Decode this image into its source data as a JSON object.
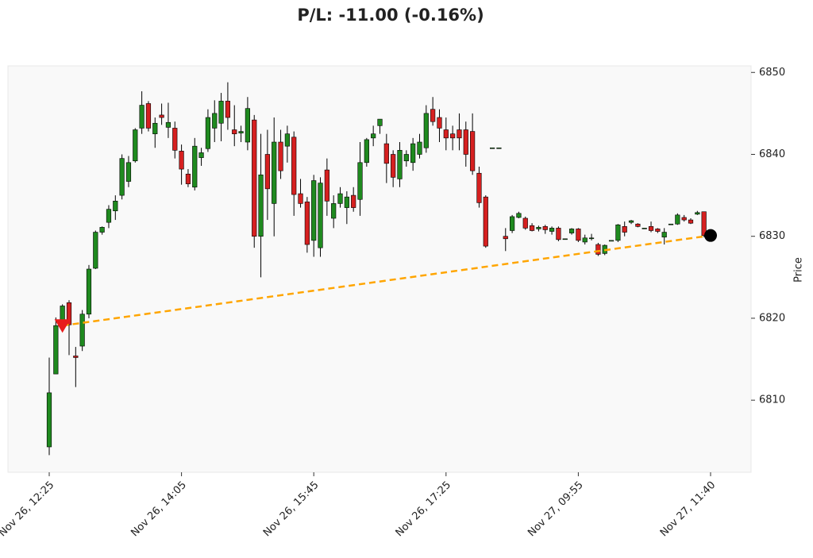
{
  "chart_data": {
    "type": "candlestick",
    "title": "P/L: -11.00 (-0.16%)",
    "y_label": "Price",
    "categories": [
      "Nov 26, 12:25",
      null,
      null,
      null,
      null,
      null,
      null,
      null,
      null,
      null,
      null,
      null,
      null,
      null,
      null,
      null,
      null,
      null,
      null,
      null,
      "Nov 26, 14:05",
      null,
      null,
      null,
      null,
      null,
      null,
      null,
      null,
      null,
      null,
      null,
      null,
      null,
      null,
      null,
      null,
      null,
      null,
      null,
      "Nov 26, 15:45",
      null,
      null,
      null,
      null,
      null,
      null,
      null,
      null,
      null,
      null,
      null,
      null,
      null,
      null,
      null,
      null,
      null,
      null,
      null,
      "Nov 26, 17:25",
      null,
      null,
      null,
      null,
      null,
      null,
      null,
      null,
      null,
      null,
      null,
      null,
      null,
      null,
      null,
      null,
      null,
      null,
      null,
      "Nov 27, 09:55",
      null,
      null,
      null,
      null,
      null,
      null,
      null,
      null,
      null,
      null,
      null,
      null,
      null,
      null,
      null,
      null,
      null,
      null,
      null,
      "Nov 27, 11:40"
    ],
    "open": [
      6804.3,
      6813.2,
      6819.1,
      6821.9,
      6815.4,
      6816.6,
      6820.5,
      6826.1,
      6830.5,
      6831.7,
      6833.1,
      6835.0,
      6836.7,
      6839.2,
      6843.2,
      6846.2,
      6842.5,
      6844.8,
      6843.3,
      6843.2,
      6840.4,
      6837.6,
      6836.0,
      6839.6,
      6840.7,
      6843.2,
      6843.8,
      6846.5,
      6843.0,
      6842.6,
      6841.5,
      6844.2,
      6830.0,
      6840.0,
      6834.0,
      6841.5,
      6841.0,
      6842.1,
      6835.2,
      6834.2,
      6829.5,
      6828.6,
      6838.1,
      6832.2,
      6834.0,
      6833.5,
      6835.0,
      6834.5,
      6839.0,
      6842.0,
      6843.5,
      6841.3,
      6840.0,
      6837.0,
      6839.2,
      6839.0,
      6840.0,
      6840.8,
      6845.5,
      6844.5,
      6843.0,
      6842.5,
      6843.0,
      6843.0,
      6842.8,
      6837.7,
      6834.8,
      6840.8,
      6840.8,
      6830.0,
      6830.7,
      6832.3,
      6832.2,
      6831.3,
      6830.9,
      6831.2,
      6830.6,
      6831.0,
      6829.7,
      6830.4,
      6830.9,
      6829.3,
      6829.8,
      6829.0,
      6827.9,
      6829.5,
      6829.5,
      6831.2,
      6831.7,
      6831.5,
      6831.0,
      6831.2,
      6830.9,
      6829.9,
      6831.5,
      6831.5,
      6832.3,
      6832.0,
      6832.7,
      6833.0,
      null
    ],
    "high": [
      6815.2,
      6820.1,
      6821.7,
      6822.2,
      6816.5,
      6821.0,
      6826.5,
      6830.7,
      6831.2,
      6833.8,
      6835.0,
      6840.0,
      6839.8,
      6843.2,
      6847.7,
      6846.5,
      6844.5,
      6846.2,
      6846.3,
      6844.0,
      6841.2,
      6838.2,
      6842.0,
      6840.8,
      6845.5,
      6846.6,
      6847.5,
      6848.8,
      6846.0,
      6843.5,
      6847.0,
      6844.8,
      6842.5,
      6843.0,
      6844.5,
      6843.0,
      6843.5,
      6842.8,
      6837.0,
      6834.8,
      6837.5,
      6837.2,
      6839.5,
      6835.0,
      6836.0,
      6835.5,
      6836.0,
      6841.5,
      6842.0,
      6843.5,
      6844.2,
      6842.5,
      6840.5,
      6841.5,
      6840.5,
      6842.0,
      6842.5,
      6846.0,
      6847.0,
      6845.5,
      6844.5,
      6843.5,
      6845.0,
      6844.0,
      6845.0,
      6838.5,
      6835.0,
      6840.8,
      6840.8,
      6831.0,
      6832.6,
      6833.0,
      6832.4,
      6831.6,
      6831.3,
      6831.4,
      6831.2,
      6831.2,
      6829.7,
      6831.0,
      6831.0,
      6830.2,
      6830.3,
      6829.2,
      6829.0,
      6829.5,
      6831.5,
      6831.8,
      6832.0,
      6831.6,
      6831.0,
      6831.8,
      6831.0,
      6831.0,
      6831.5,
      6832.8,
      6832.6,
      6832.2,
      6833.1,
      6833.0,
      null
    ],
    "low": [
      6803.3,
      6813.2,
      6818.6,
      6815.5,
      6811.6,
      6816.0,
      6820.0,
      6826.0,
      6830.2,
      6831.0,
      6832.0,
      6834.5,
      6836.0,
      6839.0,
      6842.5,
      6842.8,
      6840.8,
      6843.6,
      6842.0,
      6839.5,
      6836.3,
      6836.0,
      6835.6,
      6838.6,
      6840.3,
      6841.5,
      6841.6,
      6843.0,
      6841.0,
      6841.5,
      6840.5,
      6828.6,
      6825.0,
      6832.0,
      6830.0,
      6837.0,
      6839.0,
      6832.5,
      6833.5,
      6828.0,
      6827.5,
      6827.5,
      6832.5,
      6831.0,
      6833.5,
      6831.5,
      6833.0,
      6832.5,
      6838.5,
      6841.0,
      6842.5,
      6836.5,
      6836.0,
      6836.0,
      6838.5,
      6838.0,
      6839.5,
      6840.2,
      6843.5,
      6841.5,
      6840.5,
      6840.5,
      6840.5,
      6838.5,
      6837.5,
      6833.5,
      6828.6,
      6840.8,
      6840.8,
      6828.2,
      6830.4,
      6832.2,
      6830.8,
      6830.6,
      6830.6,
      6830.3,
      6830.2,
      6829.4,
      6829.7,
      6830.2,
      6829.3,
      6829.0,
      6829.5,
      6827.6,
      6827.7,
      6829.5,
      6829.3,
      6830.0,
      6831.5,
      6831.1,
      6831.0,
      6830.5,
      6830.4,
      6829.0,
      6831.5,
      6831.4,
      6831.8,
      6831.5,
      6832.6,
      6829.9,
      null
    ],
    "close": [
      6810.9,
      6819.1,
      6821.5,
      6819.2,
      6815.2,
      6820.5,
      6826.0,
      6830.5,
      6831.1,
      6833.3,
      6834.3,
      6839.5,
      6839.0,
      6843.0,
      6846.0,
      6843.2,
      6843.8,
      6844.5,
      6843.9,
      6840.5,
      6838.2,
      6836.4,
      6841.0,
      6840.2,
      6844.5,
      6845.0,
      6846.5,
      6844.5,
      6842.5,
      6842.8,
      6845.6,
      6830.0,
      6837.5,
      6835.8,
      6841.5,
      6838.0,
      6842.5,
      6835.1,
      6834.0,
      6829.0,
      6836.8,
      6836.5,
      6834.3,
      6834.0,
      6835.2,
      6834.8,
      6833.5,
      6839.0,
      6841.8,
      6842.5,
      6844.3,
      6838.9,
      6837.2,
      6840.5,
      6840.0,
      6841.3,
      6841.5,
      6845.0,
      6844.0,
      6843.2,
      6842.0,
      6842.0,
      6842.0,
      6840.0,
      6838.0,
      6834.1,
      6828.8,
      6840.8,
      6840.8,
      6829.7,
      6832.4,
      6832.8,
      6831.0,
      6830.7,
      6831.1,
      6830.8,
      6831.0,
      6829.6,
      6829.7,
      6830.9,
      6829.5,
      6829.8,
      6829.8,
      6827.8,
      6828.9,
      6829.5,
      6831.4,
      6830.5,
      6831.9,
      6831.2,
      6831.0,
      6830.7,
      6830.6,
      6830.5,
      6831.5,
      6832.6,
      6832.0,
      6831.6,
      6832.9,
      6830.1,
      null
    ],
    "up_color": "#1f8a1f",
    "down_color": "#d62020",
    "entry": {
      "index": 2,
      "price": 6819.1,
      "color": "#e81c1c"
    },
    "exit": {
      "index": 100,
      "price": 6830.1,
      "color": "#000000"
    },
    "trade_line_color": "#ffa500",
    "ylim": [
      6801.2,
      6850.8
    ],
    "yticks": [
      6810,
      6820,
      6830,
      6840,
      6850
    ]
  }
}
